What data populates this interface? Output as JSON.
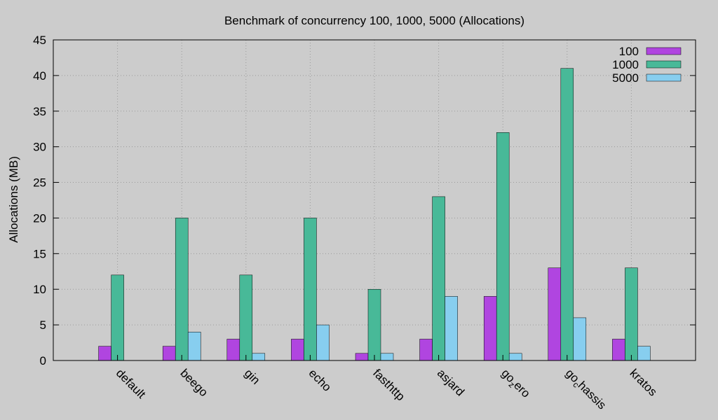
{
  "chart_data": {
    "type": "bar",
    "title": "Benchmark of concurrency 100, 1000, 5000 (Allocations)",
    "xlabel": "",
    "ylabel": "Allocations (MB)",
    "ylim": [
      0,
      45
    ],
    "yticks": [
      0,
      5,
      10,
      15,
      20,
      25,
      30,
      35,
      40,
      45
    ],
    "grid": true,
    "legend_position": "top-right",
    "categories": [
      "default",
      "beego",
      "gin",
      "echo",
      "fasthttp",
      "asjard",
      "go-zero",
      "go-chassis",
      "kratos"
    ],
    "tick_labels": [
      {
        "main": "default"
      },
      {
        "main": "beego"
      },
      {
        "main": "gin"
      },
      {
        "main": "echo"
      },
      {
        "main": "fasthttp"
      },
      {
        "main": "asjard"
      },
      {
        "main": "go",
        "sub": "z",
        "rest": "ero"
      },
      {
        "main": "go",
        "sub": "c",
        "rest": "hassis"
      },
      {
        "main": "kratos"
      }
    ],
    "series": [
      {
        "name": "100",
        "color": "#b045e0",
        "values": [
          2,
          2,
          3,
          3,
          1,
          3,
          9,
          13,
          3
        ]
      },
      {
        "name": "1000",
        "color": "#48b998",
        "values": [
          12,
          20,
          12,
          20,
          10,
          23,
          32,
          41,
          13
        ]
      },
      {
        "name": "5000",
        "color": "#87ceef",
        "values": [
          0,
          4,
          1,
          5,
          1,
          9,
          1,
          6,
          2
        ]
      }
    ]
  }
}
